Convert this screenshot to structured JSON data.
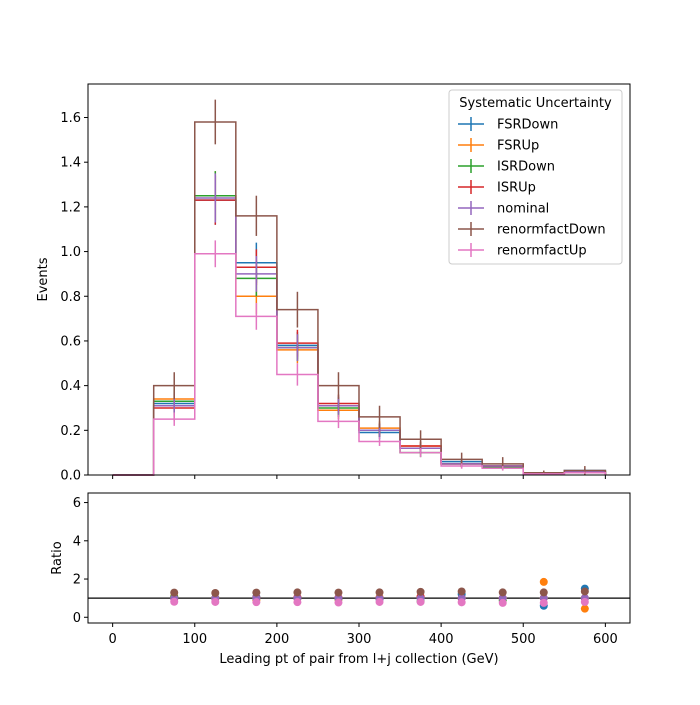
{
  "chart_data": [
    {
      "type": "step-histogram",
      "ylabel": "Events",
      "xlim": [
        -30,
        630
      ],
      "ylim": [
        0,
        1.75
      ],
      "xticks": [
        0,
        100,
        200,
        300,
        400,
        500,
        600
      ],
      "yticks": [
        0.0,
        0.2,
        0.4,
        0.6,
        0.8,
        1.0,
        1.2,
        1.4,
        1.6
      ],
      "yticklabels": [
        "0.0",
        "0.2",
        "0.4",
        "0.6",
        "0.8",
        "1.0",
        "1.2",
        "1.4",
        "1.6"
      ],
      "bin_edges": [
        0,
        50,
        100,
        150,
        200,
        250,
        300,
        350,
        400,
        450,
        500,
        550,
        600
      ],
      "legend": {
        "title": "Systematic Uncertainty",
        "placement": "top-right"
      },
      "series": [
        {
          "name": "FSRDown",
          "color": "#1f77b4",
          "values": [
            0,
            0.32,
            1.23,
            0.95,
            0.58,
            0.31,
            0.19,
            0.12,
            0.06,
            0.04,
            0.006,
            0.02
          ],
          "errors": [
            0,
            0.06,
            0.11,
            0.09,
            0.06,
            0.04,
            0.03,
            0.02,
            0.015,
            0.012,
            0.004,
            0.008
          ]
        },
        {
          "name": "FSRUp",
          "color": "#ff7f0e",
          "values": [
            0,
            0.34,
            1.25,
            0.8,
            0.56,
            0.29,
            0.21,
            0.13,
            0.05,
            0.04,
            0.01,
            0.01
          ],
          "errors": [
            0,
            0.06,
            0.11,
            0.08,
            0.06,
            0.04,
            0.03,
            0.02,
            0.015,
            0.012,
            0.005,
            0.006
          ]
        },
        {
          "name": "ISRDown",
          "color": "#2ca02c",
          "values": [
            0,
            0.33,
            1.25,
            0.88,
            0.57,
            0.3,
            0.2,
            0.1,
            0.05,
            0.035,
            0.007,
            0.015
          ],
          "errors": [
            0,
            0.06,
            0.11,
            0.08,
            0.06,
            0.04,
            0.03,
            0.02,
            0.015,
            0.012,
            0.004,
            0.007
          ]
        },
        {
          "name": "ISRUp",
          "color": "#d62728",
          "values": [
            0,
            0.3,
            1.23,
            0.93,
            0.59,
            0.32,
            0.2,
            0.13,
            0.05,
            0.04,
            0.007,
            0.015
          ],
          "errors": [
            0,
            0.06,
            0.11,
            0.08,
            0.06,
            0.04,
            0.03,
            0.02,
            0.015,
            0.012,
            0.004,
            0.007
          ]
        },
        {
          "name": "nominal",
          "color": "#9467bd",
          "values": [
            0,
            0.31,
            1.24,
            0.9,
            0.57,
            0.31,
            0.2,
            0.12,
            0.05,
            0.04,
            0.007,
            0.015
          ],
          "errors": [
            0,
            0.06,
            0.11,
            0.08,
            0.06,
            0.04,
            0.03,
            0.02,
            0.015,
            0.012,
            0.004,
            0.007
          ]
        },
        {
          "name": "renormfactDown",
          "color": "#8c564b",
          "values": [
            0,
            0.4,
            1.58,
            1.16,
            0.74,
            0.4,
            0.26,
            0.16,
            0.07,
            0.05,
            0.01,
            0.02
          ],
          "errors": [
            0,
            0.06,
            0.1,
            0.09,
            0.08,
            0.06,
            0.05,
            0.04,
            0.03,
            0.03,
            0.01,
            0.02
          ]
        },
        {
          "name": "renormfactUp",
          "color": "#e377c2",
          "values": [
            0,
            0.25,
            0.99,
            0.71,
            0.45,
            0.24,
            0.15,
            0.1,
            0.04,
            0.03,
            0.005,
            0.01
          ],
          "errors": [
            0,
            0.03,
            0.06,
            0.06,
            0.05,
            0.03,
            0.02,
            0.02,
            0.012,
            0.01,
            0.004,
            0.005
          ]
        }
      ]
    },
    {
      "type": "scatter",
      "xlabel": "Leading pt of pair from l+j collection (GeV)",
      "ylabel": "Ratio",
      "xlim": [
        -30,
        630
      ],
      "ylim": [
        -0.3,
        6.5
      ],
      "xticks": [
        0,
        100,
        200,
        300,
        400,
        500,
        600
      ],
      "yticks": [
        0,
        2,
        4,
        6
      ],
      "reference_line": 1.0,
      "x": [
        75,
        125,
        175,
        225,
        275,
        325,
        375,
        425,
        475,
        525,
        575
      ],
      "series": [
        {
          "name": "FSRDown",
          "color": "#1f77b4",
          "values": [
            1.03,
            0.99,
            1.06,
            1.02,
            1.0,
            0.95,
            1.0,
            1.2,
            1.0,
            0.6,
            1.5
          ]
        },
        {
          "name": "FSRUp",
          "color": "#ff7f0e",
          "values": [
            1.1,
            1.01,
            0.89,
            0.98,
            0.94,
            1.05,
            1.08,
            1.0,
            1.0,
            1.85,
            0.45
          ]
        },
        {
          "name": "ISRDown",
          "color": "#2ca02c",
          "values": [
            1.06,
            1.01,
            0.98,
            1.0,
            0.97,
            1.0,
            0.83,
            1.0,
            0.88,
            1.0,
            1.0
          ]
        },
        {
          "name": "ISRUp",
          "color": "#d62728",
          "values": [
            0.97,
            0.99,
            1.03,
            1.04,
            1.03,
            1.0,
            1.08,
            1.0,
            1.0,
            1.0,
            1.0
          ]
        },
        {
          "name": "nominal",
          "color": "#9467bd",
          "values": [
            1.0,
            1.0,
            1.0,
            1.0,
            1.0,
            1.0,
            1.0,
            1.0,
            1.0,
            1.0,
            1.0
          ]
        },
        {
          "name": "renormfactDown",
          "color": "#8c564b",
          "values": [
            1.29,
            1.27,
            1.29,
            1.3,
            1.29,
            1.3,
            1.33,
            1.35,
            1.3,
            1.3,
            1.35
          ]
        },
        {
          "name": "renormfactUp",
          "color": "#e377c2",
          "values": [
            0.81,
            0.8,
            0.79,
            0.79,
            0.77,
            0.8,
            0.8,
            0.78,
            0.75,
            0.75,
            0.8
          ]
        }
      ]
    }
  ]
}
